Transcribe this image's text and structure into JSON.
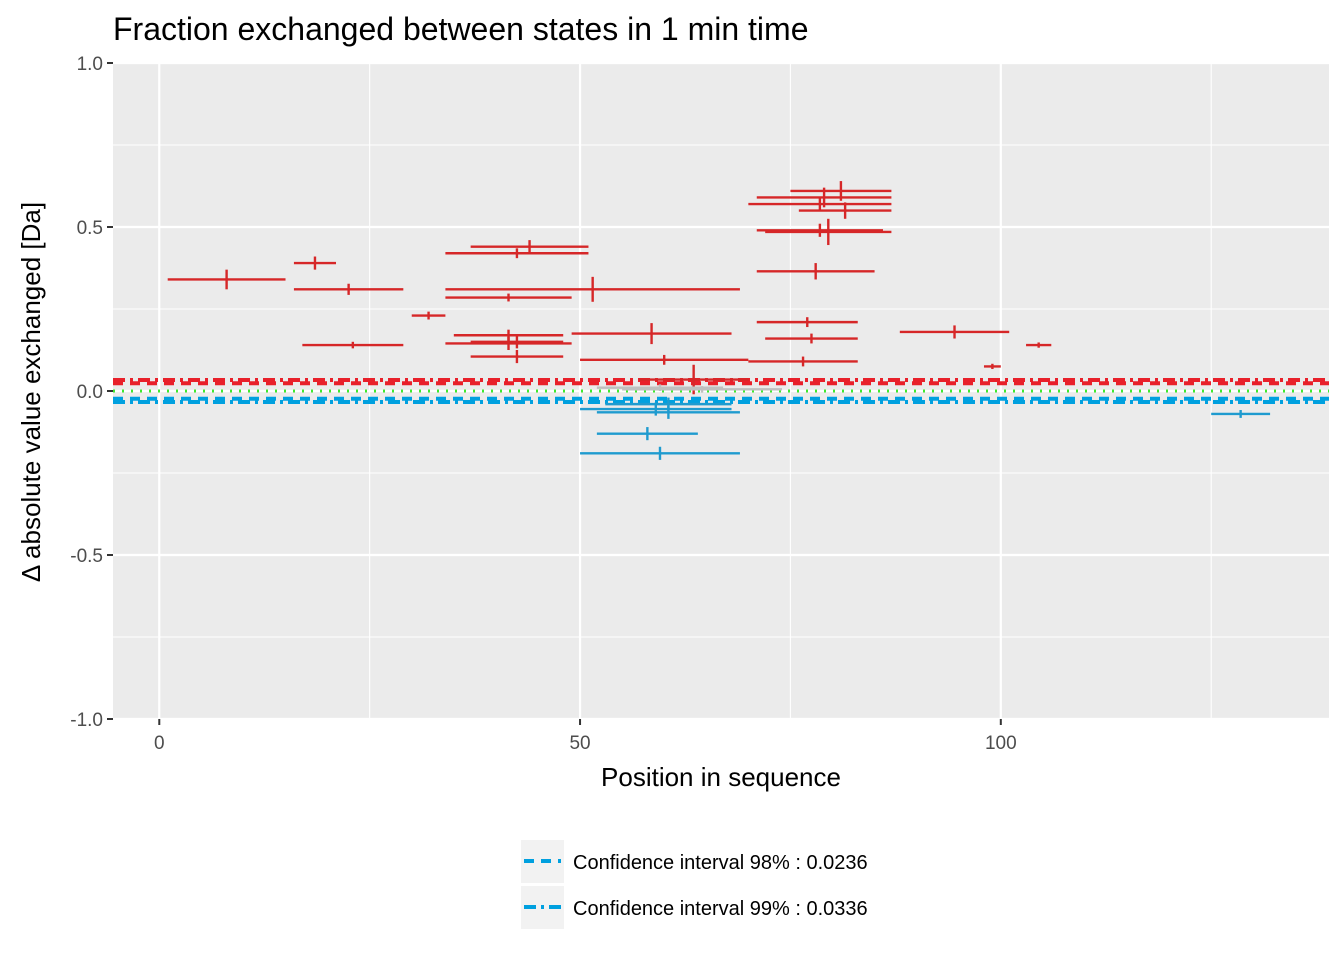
{
  "chart_data": {
    "type": "errorbar",
    "title": "Fraction exchanged between states in 1 min time",
    "xlabel": "Position in sequence",
    "ylabel": "Δ absolute value exchanged [Da]",
    "xlim": [
      -5.5,
      139
    ],
    "ylim": [
      -1.0,
      1.0
    ],
    "x_ticks": [
      0,
      50,
      100
    ],
    "x_tick_labels": [
      "0",
      "50",
      "100"
    ],
    "y_ticks": [
      -1.0,
      -0.5,
      0.0,
      0.5,
      1.0
    ],
    "y_tick_labels": [
      "-1.0",
      "-0.5",
      "0.0",
      "0.5",
      "1.0"
    ],
    "grid": true,
    "colors": {
      "panel_bg": "#ebebeb",
      "grid": "#ffffff",
      "positive": "#d62728",
      "negative": "#1f9bcf",
      "insignificant": "#bfbfbf",
      "ci_positive": "#e8202a",
      "ci_negative": "#00a0df",
      "zero_line": "#3ee82e"
    },
    "reference_lines": [
      {
        "y": 0.0336,
        "style": "dashdot",
        "color": "#e8202a"
      },
      {
        "y": 0.0236,
        "style": "dashed",
        "color": "#e8202a"
      },
      {
        "y": 0.0,
        "style": "dotted",
        "color": "#3ee82e"
      },
      {
        "y": -0.0236,
        "style": "dashed",
        "color": "#00a0df"
      },
      {
        "y": -0.0336,
        "style": "dashdot",
        "color": "#00a0df"
      }
    ],
    "peptides": [
      {
        "start": 1,
        "end": 15,
        "y": 0.34,
        "err": 0.03,
        "sign": "pos"
      },
      {
        "start": 16,
        "end": 21,
        "y": 0.39,
        "err": 0.02,
        "sign": "pos"
      },
      {
        "start": 16,
        "end": 29,
        "y": 0.31,
        "err": 0.017,
        "sign": "pos"
      },
      {
        "start": 17,
        "end": 29,
        "y": 0.14,
        "err": 0.01,
        "sign": "pos"
      },
      {
        "start": 30,
        "end": 34,
        "y": 0.23,
        "err": 0.012,
        "sign": "pos"
      },
      {
        "start": 34,
        "end": 51,
        "y": 0.42,
        "err": 0.015,
        "sign": "pos"
      },
      {
        "start": 37,
        "end": 51,
        "y": 0.44,
        "err": 0.02,
        "sign": "pos"
      },
      {
        "start": 34,
        "end": 69,
        "y": 0.31,
        "err": 0.038,
        "sign": "pos"
      },
      {
        "start": 34,
        "end": 49,
        "y": 0.285,
        "err": 0.012,
        "sign": "pos"
      },
      {
        "start": 35,
        "end": 48,
        "y": 0.17,
        "err": 0.017,
        "sign": "pos"
      },
      {
        "start": 34,
        "end": 49,
        "y": 0.145,
        "err": 0.02,
        "sign": "pos"
      },
      {
        "start": 37,
        "end": 48,
        "y": 0.15,
        "err": 0.02,
        "sign": "pos"
      },
      {
        "start": 37,
        "end": 48,
        "y": 0.105,
        "err": 0.02,
        "sign": "pos"
      },
      {
        "start": 49,
        "end": 68,
        "y": 0.175,
        "err": 0.032,
        "sign": "pos"
      },
      {
        "start": 50,
        "end": 70,
        "y": 0.095,
        "err": 0.015,
        "sign": "pos"
      },
      {
        "start": 57,
        "end": 70,
        "y": 0.035,
        "err": 0.045,
        "sign": "pos"
      },
      {
        "start": 70,
        "end": 87,
        "y": 0.57,
        "err": 0.02,
        "sign": "pos"
      },
      {
        "start": 71,
        "end": 87,
        "y": 0.59,
        "err": 0.03,
        "sign": "pos"
      },
      {
        "start": 75,
        "end": 87,
        "y": 0.61,
        "err": 0.03,
        "sign": "pos"
      },
      {
        "start": 76,
        "end": 87,
        "y": 0.55,
        "err": 0.025,
        "sign": "pos"
      },
      {
        "start": 71,
        "end": 86,
        "y": 0.49,
        "err": 0.02,
        "sign": "pos"
      },
      {
        "start": 72,
        "end": 87,
        "y": 0.485,
        "err": 0.04,
        "sign": "pos"
      },
      {
        "start": 71,
        "end": 85,
        "y": 0.365,
        "err": 0.025,
        "sign": "pos"
      },
      {
        "start": 71,
        "end": 83,
        "y": 0.21,
        "err": 0.015,
        "sign": "pos"
      },
      {
        "start": 72,
        "end": 83,
        "y": 0.16,
        "err": 0.015,
        "sign": "pos"
      },
      {
        "start": 70,
        "end": 83,
        "y": 0.09,
        "err": 0.015,
        "sign": "pos"
      },
      {
        "start": 88,
        "end": 101,
        "y": 0.18,
        "err": 0.02,
        "sign": "pos"
      },
      {
        "start": 98,
        "end": 100,
        "y": 0.075,
        "err": 0.008,
        "sign": "pos"
      },
      {
        "start": 103,
        "end": 106,
        "y": 0.14,
        "err": 0.008,
        "sign": "pos"
      },
      {
        "start": 52,
        "end": 67,
        "y": 0.01,
        "err": 0.01,
        "sign": "none"
      },
      {
        "start": 55,
        "end": 74,
        "y": 0.005,
        "err": 0.01,
        "sign": "none"
      },
      {
        "start": 50,
        "end": 68,
        "y": -0.055,
        "err": 0.02,
        "sign": "neg"
      },
      {
        "start": 52,
        "end": 69,
        "y": -0.065,
        "err": 0.02,
        "sign": "neg"
      },
      {
        "start": 53,
        "end": 68,
        "y": -0.04,
        "err": 0.02,
        "sign": "neg"
      },
      {
        "start": 52,
        "end": 64,
        "y": -0.13,
        "err": 0.02,
        "sign": "neg"
      },
      {
        "start": 50,
        "end": 69,
        "y": -0.19,
        "err": 0.02,
        "sign": "neg"
      },
      {
        "start": 125,
        "end": 132,
        "y": -0.07,
        "err": 0.012,
        "sign": "neg"
      }
    ]
  },
  "legend": [
    {
      "label": "Confidence interval 98% : 0.0236",
      "style": "dashed",
      "color": "#00a0df"
    },
    {
      "label": "Confidence interval 99% : 0.0336",
      "style": "dashdot",
      "color": "#00a0df"
    }
  ]
}
